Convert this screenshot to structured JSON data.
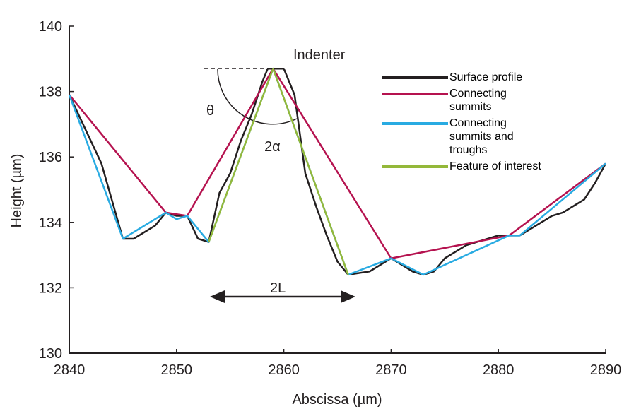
{
  "chart_data": {
    "type": "line",
    "x_label": "Abscissa (µm)",
    "y_label": "Height (µm)",
    "annotations": [
      "Indenter",
      "θ",
      "2α",
      "2L"
    ],
    "xlim": [
      2840,
      2890
    ],
    "xticks": [
      2840,
      2850,
      2860,
      2870,
      2880,
      2890
    ],
    "ylim": [
      130,
      140
    ],
    "yticks": [
      130,
      132,
      134,
      136,
      138,
      140
    ],
    "grid": false,
    "legend": "upper right",
    "series": [
      {
        "name": "Surface profile",
        "color": "#231f20",
        "x": [
          2840,
          2843,
          2845,
          2846,
          2848,
          2849,
          2850,
          2851,
          2852,
          2853,
          2854,
          2855,
          2856,
          2857,
          2858,
          2858.5,
          2860,
          2861,
          2862,
          2863,
          2864,
          2865,
          2866,
          2868,
          2869,
          2870,
          2871,
          2872,
          2873,
          2874,
          2875,
          2876,
          2877,
          2878,
          2879,
          2880,
          2881,
          2882,
          2883,
          2884,
          2885,
          2886,
          2887,
          2888,
          2889,
          2890
        ],
        "values": [
          137.9,
          135.8,
          133.5,
          133.5,
          133.9,
          134.3,
          134.2,
          134.2,
          133.5,
          133.4,
          134.9,
          135.5,
          136.5,
          137.3,
          138.3,
          138.7,
          138.7,
          137.9,
          135.5,
          134.5,
          133.6,
          132.8,
          132.4,
          132.5,
          132.7,
          132.9,
          132.7,
          132.5,
          132.4,
          132.5,
          132.9,
          133.1,
          133.3,
          133.4,
          133.5,
          133.6,
          133.6,
          133.6,
          133.8,
          134.0,
          134.2,
          134.3,
          134.5,
          134.7,
          135.2,
          135.8
        ]
      },
      {
        "name": "Connecting summits",
        "color": "#b5124f",
        "x": [
          2840,
          2849,
          2851,
          2859,
          2870,
          2881,
          2890
        ],
        "values": [
          137.9,
          134.3,
          134.2,
          138.7,
          132.9,
          133.6,
          135.8
        ]
      },
      {
        "name": "Connecting summits and troughs",
        "color": "#29abe2",
        "x": [
          2840,
          2845,
          2849,
          2850,
          2851,
          2853,
          2859,
          2866,
          2870,
          2873,
          2881,
          2882,
          2890
        ],
        "values": [
          137.9,
          133.5,
          134.3,
          134.1,
          134.2,
          133.4,
          138.7,
          132.4,
          132.9,
          132.4,
          133.6,
          133.6,
          135.8
        ]
      },
      {
        "name": "Feature of interest",
        "color": "#94b83a",
        "x": [
          2853,
          2859,
          2866
        ],
        "values": [
          133.4,
          138.7,
          132.4
        ]
      }
    ]
  }
}
